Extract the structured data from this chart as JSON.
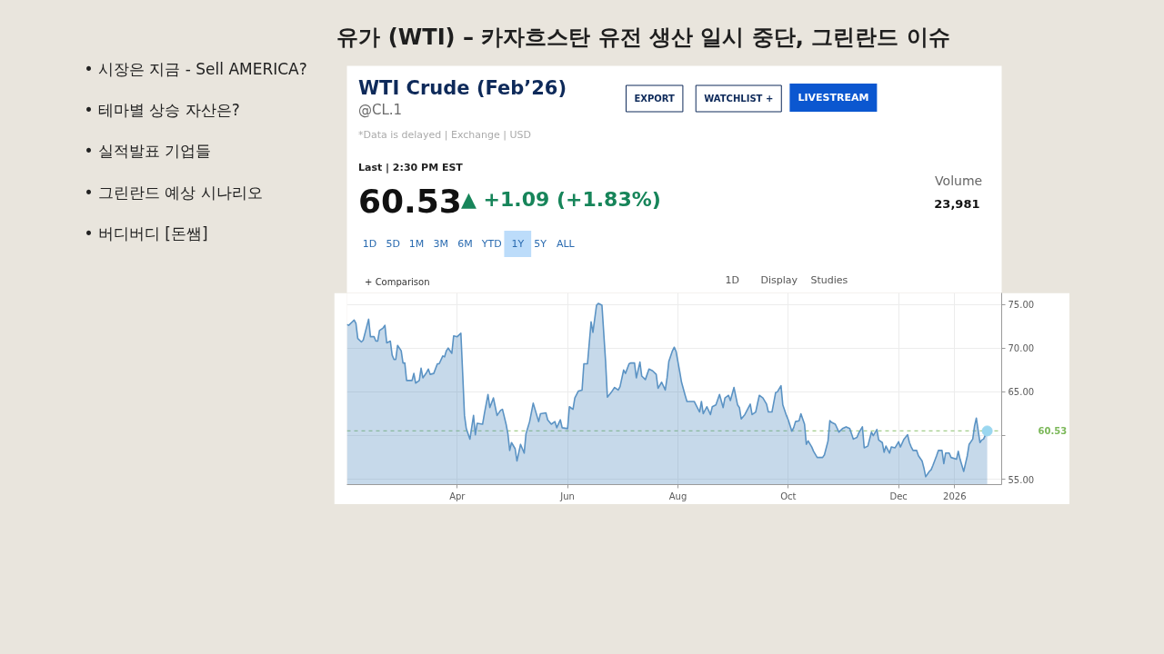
{
  "chart_data": {
    "type": "area",
    "title": "유가 (WTI) – 카자흐스탄 유전 생산 일시 중단, 그린란드 이슈",
    "subtitle": "WTI Crude (Feb’26)",
    "annotations": [
      "• 시장은 지금 - Sell AMERICA?",
      "• 테마별 상승 자산은?",
      "• 실적발표 기업들",
      "• 그린란드 예상 시나리오",
      "• 버디버디 [돈쌤]",
      "@CL.1",
      "*Data is delayed | Exchange | USD",
      "EXPORT",
      "WATCHLIST +",
      "LIVESTREAM",
      "Last | 2:30 PM EST",
      "60.53",
      "▲ +1.09 (+1.83%)",
      "Volume",
      "23,981",
      "1D",
      "5D",
      "1M",
      "3M",
      "6M",
      "YTD",
      "1Y",
      "5Y",
      "ALL",
      "+ Comparison",
      "1D",
      "Display",
      "Studies"
    ],
    "series": [
      {
        "color": "#5b93c4",
        "x": [
          "2025-01-30",
          "2025-01-31",
          "2025-02-02",
          "2025-02-03",
          "2025-02-04",
          "2025-02-05",
          "2025-02-07",
          "2025-02-08",
          "2025-02-10",
          "2025-02-11",
          "2025-02-12",
          "2025-02-14",
          "2025-02-15",
          "2025-02-16",
          "2025-02-17",
          "2025-02-19",
          "2025-02-20",
          "2025-02-21",
          "2025-02-23",
          "2025-02-24",
          "2025-02-25",
          "2025-02-26",
          "2025-02-27",
          "2025-03-01",
          "2025-03-02",
          "2025-03-03",
          "2025-03-04",
          "2025-03-07",
          "2025-03-08",
          "2025-03-09",
          "2025-03-11",
          "2025-03-12",
          "2025-03-13",
          "2025-03-15",
          "2025-03-16",
          "2025-03-17",
          "2025-03-19",
          "2025-03-21",
          "2025-03-22",
          "2025-03-24",
          "2025-03-25",
          "2025-03-26",
          "2025-03-27",
          "2025-03-29",
          "2025-03-30",
          "2025-04-01",
          "2025-04-03",
          "2025-04-04",
          "2025-04-05",
          "2025-04-06",
          "2025-04-08",
          "2025-04-10",
          "2025-04-11",
          "2025-04-12",
          "2025-04-15",
          "2025-04-16",
          "2025-04-18",
          "2025-04-19",
          "2025-04-21",
          "2025-04-22",
          "2025-04-23",
          "2025-04-25",
          "2025-04-26",
          "2025-04-28",
          "2025-04-29",
          "2025-04-30",
          "2025-05-01",
          "2025-05-03",
          "2025-05-04",
          "2025-05-06",
          "2025-05-08",
          "2025-05-09",
          "2025-05-11",
          "2025-05-13",
          "2025-05-14",
          "2025-05-16",
          "2025-05-17",
          "2025-05-20",
          "2025-05-21",
          "2025-05-23",
          "2025-05-25",
          "2025-05-26",
          "2025-05-28",
          "2025-05-29",
          "2025-06-01",
          "2025-06-02",
          "2025-06-04",
          "2025-06-05",
          "2025-06-07",
          "2025-06-09",
          "2025-06-10",
          "2025-06-12",
          "2025-06-14",
          "2025-06-15",
          "2025-06-17",
          "2025-06-18",
          "2025-06-20",
          "2025-06-22",
          "2025-06-23",
          "2025-06-25",
          "2025-06-27",
          "2025-06-29",
          "2025-06-30",
          "2025-07-02",
          "2025-07-03",
          "2025-07-05",
          "2025-07-06",
          "2025-07-08",
          "2025-07-09",
          "2025-07-11",
          "2025-07-12",
          "2025-07-14",
          "2025-07-16",
          "2025-07-18",
          "2025-07-20",
          "2025-07-21",
          "2025-07-23",
          "2025-07-25",
          "2025-07-26",
          "2025-07-27",
          "2025-07-29",
          "2025-07-30",
          "2025-07-31",
          "2025-08-02",
          "2025-08-03",
          "2025-08-05",
          "2025-08-06",
          "2025-08-08",
          "2025-08-10",
          "2025-08-11",
          "2025-08-13",
          "2025-08-14",
          "2025-08-15",
          "2025-08-17",
          "2025-08-19",
          "2025-08-20",
          "2025-08-22",
          "2025-08-24",
          "2025-08-26",
          "2025-08-27",
          "2025-08-29",
          "2025-08-30",
          "2025-09-01",
          "2025-09-03",
          "2025-09-04",
          "2025-09-05",
          "2025-09-07",
          "2025-09-10",
          "2025-09-11",
          "2025-09-13",
          "2025-09-15",
          "2025-09-17",
          "2025-09-19",
          "2025-09-20",
          "2025-09-22",
          "2025-09-24",
          "2025-09-25",
          "2025-09-27",
          "2025-09-28",
          "2025-09-30",
          "2025-10-01",
          "2025-10-03",
          "2025-10-04",
          "2025-10-05",
          "2025-10-07",
          "2025-10-08",
          "2025-10-10",
          "2025-10-11",
          "2025-10-12",
          "2025-10-14",
          "2025-10-15",
          "2025-10-17",
          "2025-10-20",
          "2025-10-21",
          "2025-10-23",
          "2025-10-24",
          "2025-10-25",
          "2025-10-27",
          "2025-10-29",
          "2025-10-31",
          "2025-11-02",
          "2025-11-04",
          "2025-11-06",
          "2025-11-08",
          "2025-11-09",
          "2025-11-11",
          "2025-11-12",
          "2025-11-14",
          "2025-11-16",
          "2025-11-17",
          "2025-11-19",
          "2025-11-20",
          "2025-11-22",
          "2025-11-23",
          "2025-11-24",
          "2025-11-26",
          "2025-11-27",
          "2025-11-29",
          "2025-12-01",
          "2025-12-02",
          "2025-12-04",
          "2025-12-06",
          "2025-12-07",
          "2025-12-08",
          "2025-12-09",
          "2025-12-11",
          "2025-12-12",
          "2025-12-14",
          "2025-12-15",
          "2025-12-16",
          "2025-12-18",
          "2025-12-19",
          "2025-12-20",
          "2025-12-22",
          "2025-12-23",
          "2025-12-25",
          "2025-12-26",
          "2025-12-27",
          "2025-12-29",
          "2025-12-30",
          "2026-01-02",
          "2026-01-03",
          "2026-01-04",
          "2026-01-05",
          "2026-01-06",
          "2026-01-08",
          "2026-01-09",
          "2026-01-11",
          "2026-01-12",
          "2026-01-13",
          "2026-01-15",
          "2026-01-16",
          "2026-01-17",
          "2026-01-19"
        ],
        "values": [
          72.7,
          72.6,
          73.0,
          73.2,
          72.8,
          71.1,
          70.7,
          70.9,
          72.5,
          73.3,
          71.3,
          71.3,
          70.8,
          70.8,
          72.0,
          72.3,
          72.6,
          70.6,
          70.8,
          69.2,
          68.7,
          68.7,
          70.3,
          69.7,
          68.3,
          68.3,
          66.3,
          66.3,
          67.1,
          66.0,
          66.3,
          67.7,
          66.6,
          67.2,
          67.6,
          67.0,
          67.1,
          68.2,
          68.2,
          69.1,
          69.0,
          69.7,
          70.0,
          69.4,
          71.4,
          71.3,
          71.7,
          67.1,
          62.3,
          60.8,
          59.6,
          62.3,
          60.1,
          61.4,
          61.3,
          62.5,
          64.7,
          63.2,
          64.3,
          63.3,
          62.3,
          62.9,
          63.0,
          61.3,
          60.2,
          58.3,
          59.2,
          58.5,
          57.1,
          59.0,
          58.0,
          60.2,
          61.6,
          63.7,
          63.0,
          61.6,
          62.5,
          62.6,
          61.8,
          61.3,
          61.6,
          60.9,
          61.8,
          60.9,
          60.8,
          63.3,
          63.0,
          64.3,
          65.1,
          65.2,
          68.2,
          68.2,
          73.0,
          71.8,
          74.9,
          75.1,
          74.9,
          68.5,
          64.4,
          64.9,
          65.5,
          65.2,
          65.6,
          67.5,
          67.1,
          68.2,
          68.3,
          68.3,
          66.6,
          68.4,
          66.8,
          66.4,
          67.6,
          67.4,
          67.0,
          65.4,
          66.1,
          65.2,
          66.6,
          68.5,
          69.7,
          70.1,
          69.6,
          67.3,
          66.1,
          64.6,
          63.9,
          63.9,
          63.9,
          63.5,
          62.7,
          63.9,
          62.5,
          63.3,
          62.4,
          63.3,
          63.5,
          64.7,
          63.2,
          64.3,
          64.6,
          64.0,
          65.5,
          63.5,
          63.2,
          61.9,
          62.4,
          63.6,
          62.4,
          62.7,
          64.6,
          64.3,
          63.6,
          62.7,
          62.7,
          64.9,
          65.0,
          65.7,
          63.5,
          62.3,
          61.8,
          60.5,
          60.9,
          61.6,
          61.7,
          62.5,
          61.3,
          59.0,
          59.4,
          58.7,
          58.2,
          57.5,
          57.5,
          57.8,
          59.4,
          61.7,
          61.5,
          61.3,
          60.4,
          60.8,
          61.0,
          60.8,
          59.6,
          59.8,
          60.3,
          61.0,
          58.6,
          58.8,
          60.4,
          60.0,
          60.7,
          59.5,
          59.2,
          58.1,
          58.8,
          58.0,
          58.7,
          58.6,
          59.3,
          58.7,
          59.6,
          60.1,
          59.2,
          58.7,
          58.3,
          58.3,
          57.7,
          57.1,
          56.3,
          55.3,
          55.9,
          56.1,
          56.6,
          57.7,
          58.3,
          58.3,
          56.8,
          58.0,
          58.0,
          57.5,
          57.3,
          58.2,
          57.3,
          56.6,
          55.9,
          57.7,
          59.0,
          59.6,
          61.1,
          62.0,
          59.2,
          59.5,
          59.6,
          60.53
        ]
      },
      {
        "type": "scatter",
        "marker": "circle",
        "color": "#9ad7f0",
        "x": [
          "2026-01-19"
        ],
        "values": [
          60.53
        ]
      }
    ],
    "xlim": [
      "2025-01-30",
      "2026-01-27"
    ],
    "xticks": [
      {
        "value": "2025-04-01",
        "label": "Apr"
      },
      {
        "value": "2025-06-01",
        "label": "Jun"
      },
      {
        "value": "2025-08-01",
        "label": "Aug"
      },
      {
        "value": "2025-10-01",
        "label": "Oct"
      },
      {
        "value": "2025-12-01",
        "label": "Dec"
      },
      {
        "value": "2026-01-01",
        "label": "2026"
      }
    ],
    "ylim": [
      54.4,
      76.3
    ],
    "yticks": [
      {
        "value": 55,
        "label": "55.00"
      },
      {
        "value": 60,
        "label": null
      },
      {
        "value": 65,
        "label": "65.00"
      },
      {
        "value": 70,
        "label": "70.00"
      },
      {
        "value": 75,
        "label": "75.00"
      }
    ],
    "ref_lines": [
      {
        "axis": "y",
        "value": 60.53,
        "label": "60.53",
        "color": "#7cb85a",
        "line_style": "dashed"
      }
    ],
    "grid": true
  }
}
